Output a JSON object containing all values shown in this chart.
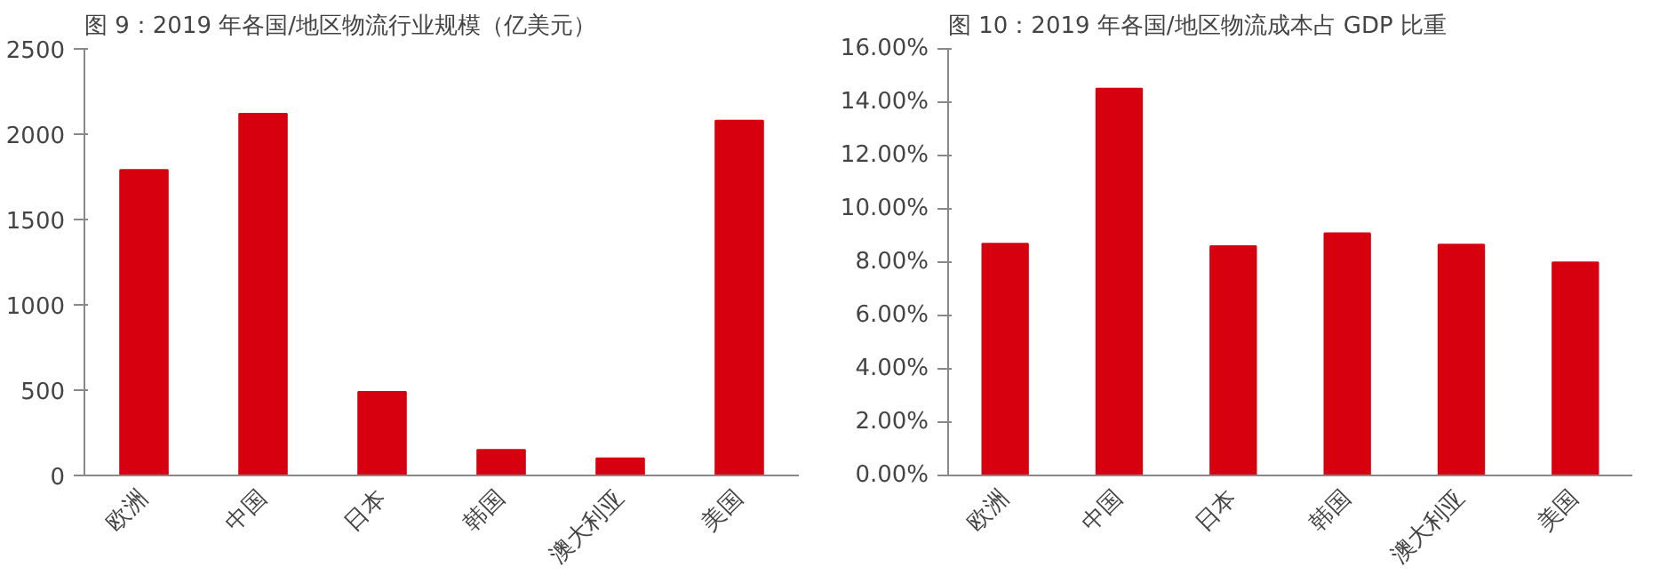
{
  "chart_data": [
    {
      "type": "bar",
      "title": "图 9：2019 年各国/地区物流行业规模（亿美元）",
      "categories": [
        "欧洲",
        "中国",
        "日本",
        "韩国",
        "澳大利亚",
        "美国"
      ],
      "values": [
        1790,
        2120,
        490,
        150,
        100,
        2080
      ],
      "color": "#d7000f",
      "ylim": [
        0,
        2500
      ],
      "yticks": [
        0,
        500,
        1000,
        1500,
        2000,
        2500
      ],
      "grid": false
    },
    {
      "type": "bar",
      "title": "图 10：2019 年各国/地区物流成本占 GDP 比重",
      "categories": [
        "欧洲",
        "中国",
        "日本",
        "韩国",
        "澳大利亚",
        "美国"
      ],
      "values": [
        8.69,
        14.51,
        8.6,
        9.08,
        8.66,
        7.99
      ],
      "color": "#d7000f",
      "ylim": [
        0,
        16
      ],
      "yticks": [
        {
          "value": 0,
          "label": "0.00%"
        },
        {
          "value": 2,
          "label": "2.00%"
        },
        {
          "value": 4,
          "label": "4.00%"
        },
        {
          "value": 6,
          "label": "6.00%"
        },
        {
          "value": 8,
          "label": "8.00%"
        },
        {
          "value": 10,
          "label": "10.00%"
        },
        {
          "value": 12,
          "label": "12.00%"
        },
        {
          "value": 14,
          "label": "14.00%"
        },
        {
          "value": 16,
          "label": "16.00%"
        }
      ],
      "grid": false
    }
  ]
}
